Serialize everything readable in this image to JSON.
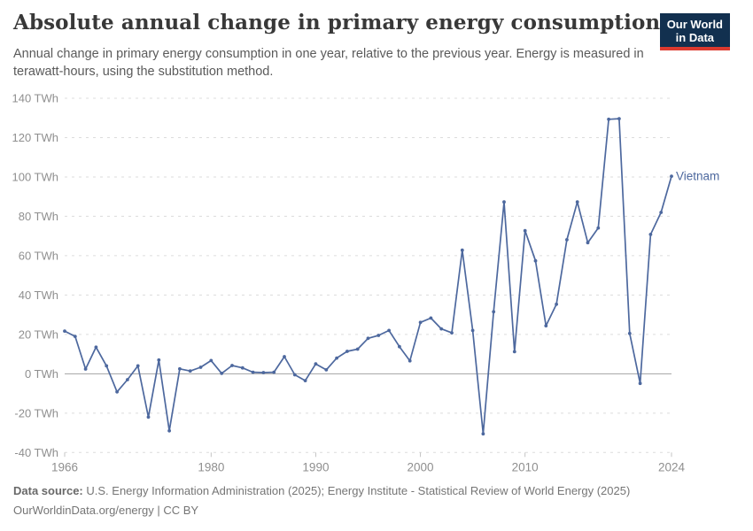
{
  "header": {
    "title": "Absolute annual change in primary energy consumption",
    "subtitle": "Annual change in primary energy consumption in one year, relative to the previous year. Energy is measured in terawatt-hours, using the substitution method.",
    "logo": {
      "line1": "Our World",
      "line2": "in Data"
    }
  },
  "chart_data": {
    "type": "line",
    "title": "Absolute annual change in primary energy consumption",
    "entity": "Vietnam",
    "unit": "TWh",
    "x": [
      1966,
      1967,
      1968,
      1969,
      1970,
      1971,
      1972,
      1973,
      1974,
      1975,
      1976,
      1977,
      1978,
      1979,
      1980,
      1981,
      1982,
      1983,
      1984,
      1985,
      1986,
      1987,
      1988,
      1989,
      1990,
      1991,
      1992,
      1993,
      1994,
      1995,
      1996,
      1997,
      1998,
      1999,
      2000,
      2001,
      2002,
      2003,
      2004,
      2005,
      2006,
      2007,
      2008,
      2009,
      2010,
      2011,
      2012,
      2013,
      2014,
      2015,
      2016,
      2017,
      2018,
      2019,
      2020,
      2021,
      2022,
      2023,
      2024
    ],
    "values": [
      21.7,
      19,
      2.4,
      13.5,
      4,
      -9.2,
      -3,
      4,
      -22,
      7,
      -29,
      2.5,
      1.4,
      3.3,
      6.7,
      0.2,
      4.2,
      3,
      0.8,
      0.6,
      0.8,
      8.7,
      -0.5,
      -3.5,
      5,
      2,
      8,
      11.4,
      12.5,
      18,
      19.5,
      22,
      13.8,
      6.6,
      26.1,
      28.3,
      22.8,
      20.8,
      62.8,
      22,
      -30.5,
      31.5,
      87.3,
      11.2,
      72.7,
      57.4,
      24.4,
      35.3,
      68.1,
      87.3,
      66.6,
      74.1,
      129.3,
      129.6,
      20.5,
      -4.9,
      70.8,
      82,
      100.4
    ],
    "xticks": [
      1966,
      1980,
      1990,
      2000,
      2010,
      2024
    ],
    "yticks": [
      -40,
      -20,
      0,
      20,
      40,
      60,
      80,
      100,
      120,
      140
    ],
    "ytick_suffix": " TWh",
    "xlim": [
      1966,
      2024
    ],
    "ylim": [
      -40,
      140
    ],
    "grid": "horizontal-dashed",
    "legend": "end-of-line-label",
    "line_color": "#4d689e",
    "marker": "dot",
    "grid_color": "#dcdcdc",
    "zero_line_color": "#a3a3a3",
    "axis_text_color": "#8f8f8f"
  },
  "footer": {
    "datasource_label": "Data source:",
    "datasource": "U.S. Energy Information Administration (2025); Energy Institute - Statistical Review of World Energy (2025)",
    "link": "OurWorldinData.org/energy",
    "separator": "|",
    "license": "CC BY"
  }
}
